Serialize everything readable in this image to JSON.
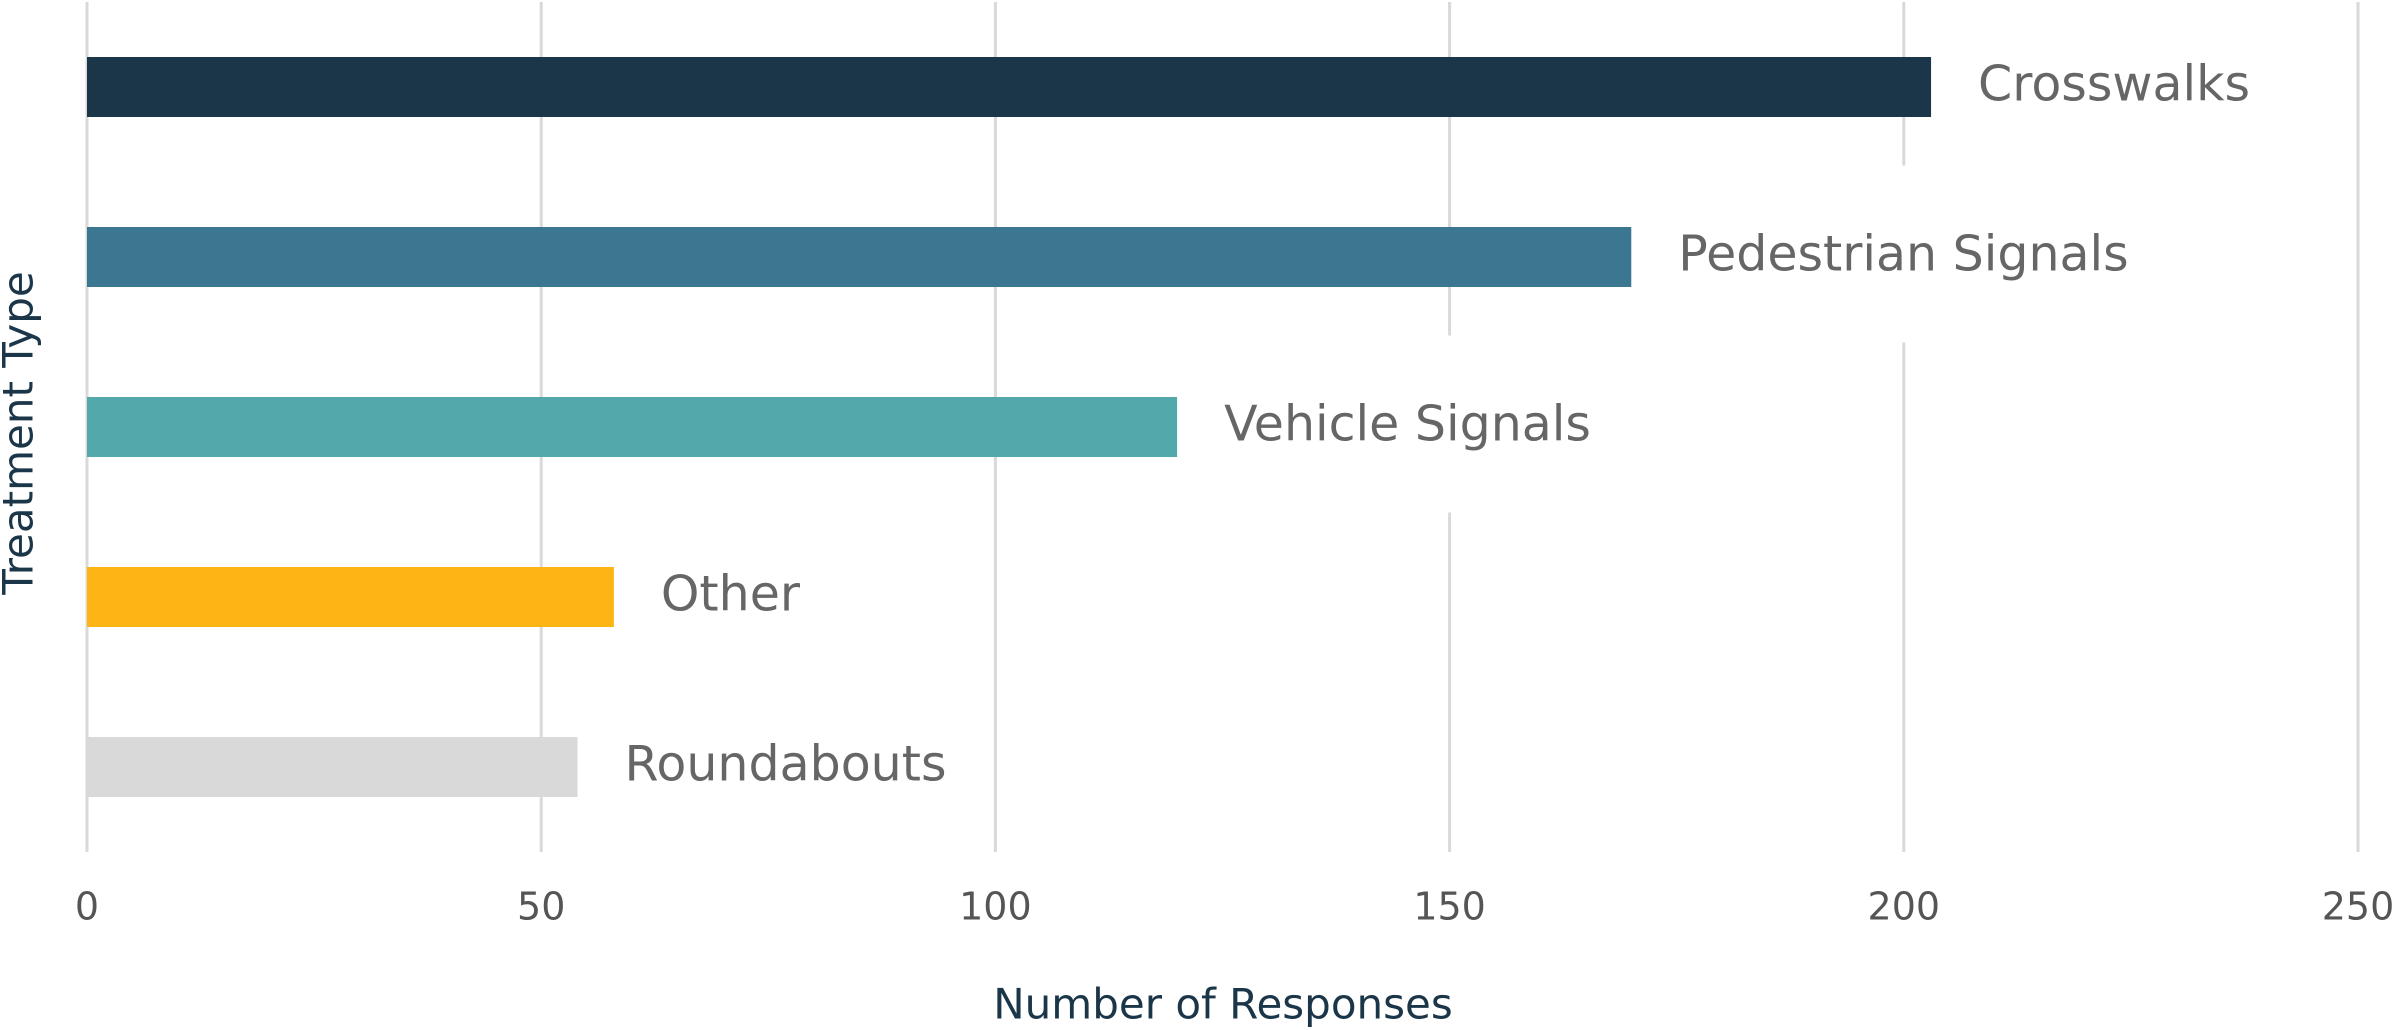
{
  "chart_data": {
    "type": "bar",
    "orientation": "horizontal",
    "categories": [
      "Crosswalks",
      "Pedestrian Signals",
      "Vehicle Signals",
      "Other",
      "Roundabouts"
    ],
    "values": [
      203,
      170,
      120,
      58,
      54
    ],
    "colors": [
      "#1b3549",
      "#3b7791",
      "#52a8ab",
      "#fdb515",
      "#d9d9d9"
    ],
    "xlabel": "Number of Responses",
    "ylabel": "Treatment Type",
    "xlim": [
      0,
      250
    ],
    "xticks": [
      0,
      50,
      100,
      150,
      200,
      250
    ],
    "grid": true
  }
}
